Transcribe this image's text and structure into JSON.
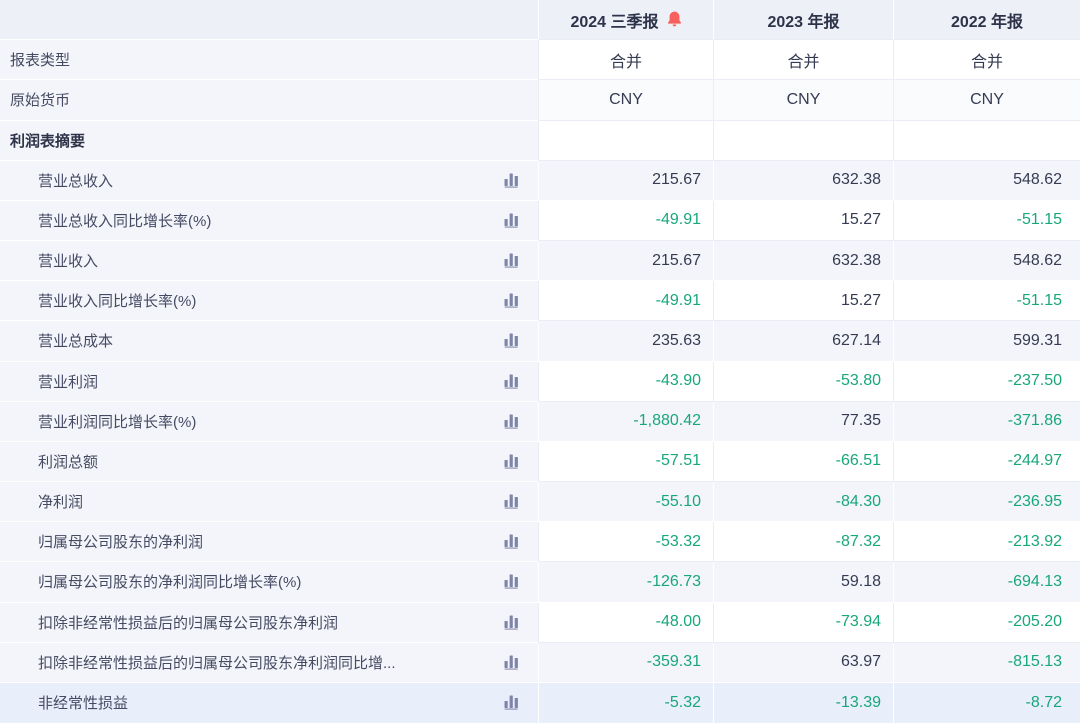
{
  "colors": {
    "header_bg": "#eef0f8",
    "label_col_bg": "#f4f5fa",
    "stripe_bg": "#f4f5fa",
    "faint_bg": "#fafbfd",
    "highlight_bg": "#e9eefb",
    "separator": "#ebedf4",
    "text_dark": "#353b52",
    "text_label": "#454a63",
    "negative_value": "#18a77b",
    "alert_red": "#f7605c",
    "chart_icon": "#7e85a9"
  },
  "table": {
    "columns": [
      {
        "label": "2024 三季报",
        "alert_icon": true
      },
      {
        "label": "2023 年报",
        "alert_icon": false
      },
      {
        "label": "2022 年报",
        "alert_icon": false
      }
    ],
    "meta_rows": [
      {
        "label": "报表类型",
        "values": [
          "合并",
          "合并",
          "合并"
        ]
      },
      {
        "label": "原始货币",
        "values": [
          "CNY",
          "CNY",
          "CNY"
        ]
      }
    ],
    "section_title": "利润表摘要",
    "rows": [
      {
        "label": "营业总收入",
        "values": [
          "215.67",
          "632.38",
          "548.62"
        ]
      },
      {
        "label": "营业总收入同比增长率(%)",
        "values": [
          "-49.91",
          "15.27",
          "-51.15"
        ]
      },
      {
        "label": "营业收入",
        "values": [
          "215.67",
          "632.38",
          "548.62"
        ]
      },
      {
        "label": "营业收入同比增长率(%)",
        "values": [
          "-49.91",
          "15.27",
          "-51.15"
        ]
      },
      {
        "label": "营业总成本",
        "values": [
          "235.63",
          "627.14",
          "599.31"
        ]
      },
      {
        "label": "营业利润",
        "values": [
          "-43.90",
          "-53.80",
          "-237.50"
        ]
      },
      {
        "label": "营业利润同比增长率(%)",
        "values": [
          "-1,880.42",
          "77.35",
          "-371.86"
        ]
      },
      {
        "label": "利润总额",
        "values": [
          "-57.51",
          "-66.51",
          "-244.97"
        ]
      },
      {
        "label": "净利润",
        "values": [
          "-55.10",
          "-84.30",
          "-236.95"
        ]
      },
      {
        "label": "归属母公司股东的净利润",
        "values": [
          "-53.32",
          "-87.32",
          "-213.92"
        ]
      },
      {
        "label": "归属母公司股东的净利润同比增长率(%)",
        "values": [
          "-126.73",
          "59.18",
          "-694.13"
        ]
      },
      {
        "label": "扣除非经常性损益后的归属母公司股东净利润",
        "values": [
          "-48.00",
          "-73.94",
          "-205.20"
        ]
      },
      {
        "label": "扣除非经常性损益后的归属母公司股东净利润同比增...",
        "values": [
          "-359.31",
          "63.97",
          "-815.13"
        ]
      },
      {
        "label": "非经常性损益",
        "values": [
          "-5.32",
          "-13.39",
          "-8.72"
        ],
        "highlighted": true
      }
    ]
  }
}
